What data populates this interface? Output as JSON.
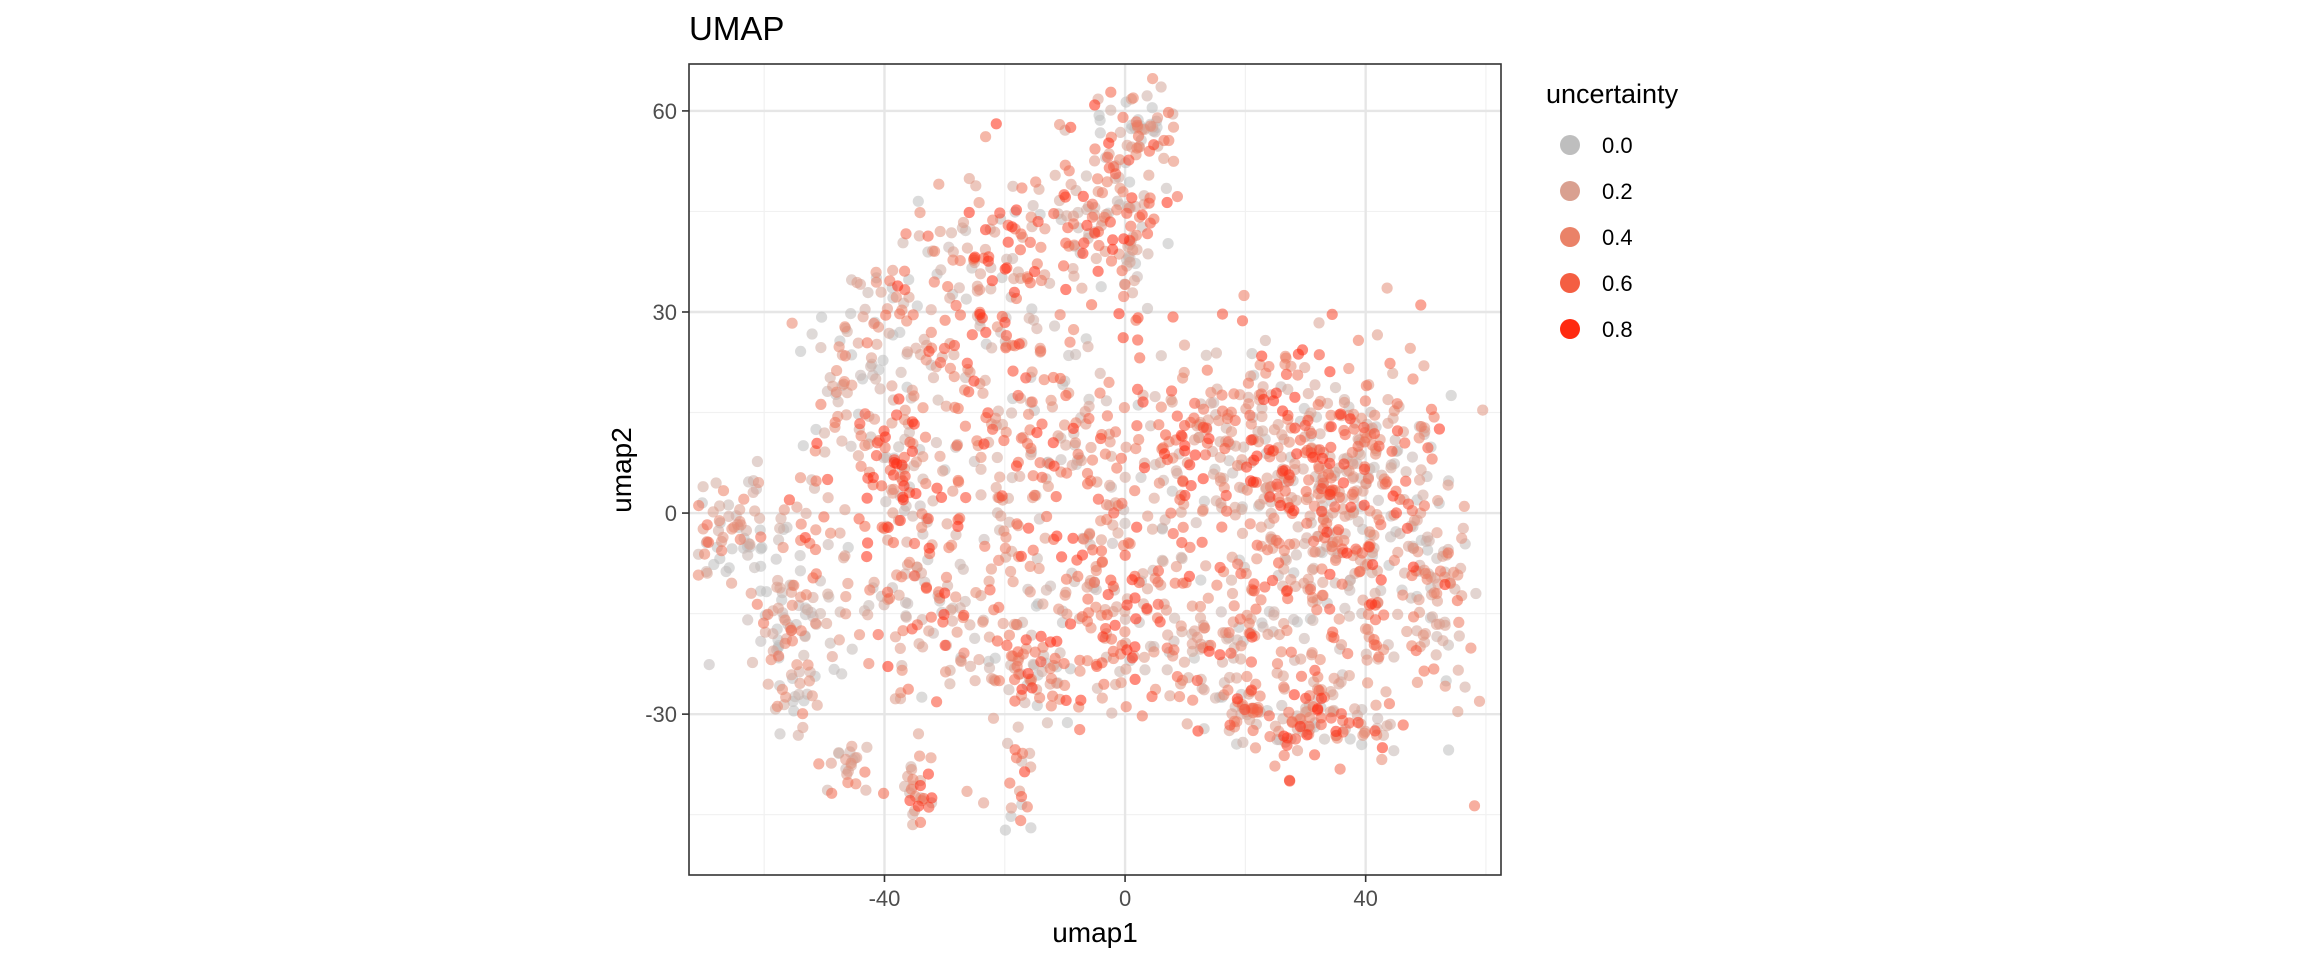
{
  "chart_data": {
    "type": "scatter",
    "title": "UMAP",
    "xlabel": "umap1",
    "ylabel": "umap2",
    "xlim": [
      -72.5,
      62.5
    ],
    "ylim": [
      -54,
      67
    ],
    "x_ticks": [
      -40,
      0,
      40
    ],
    "y_ticks": [
      -30,
      0,
      30,
      60
    ],
    "x_tick_labels": [
      "-40",
      "0",
      "40"
    ],
    "y_tick_labels": [
      "-30",
      "0",
      "30",
      "60"
    ],
    "grid": true,
    "point_alpha": 0.55,
    "legend": {
      "title": "uncertainty",
      "position": "right",
      "entries": [
        {
          "label": "0.0",
          "value": 0.0,
          "color": "#BEBEBE"
        },
        {
          "label": "0.2",
          "value": 0.2,
          "color": "#D9A090"
        },
        {
          "label": "0.4",
          "value": 0.4,
          "color": "#EA8268"
        },
        {
          "label": "0.6",
          "value": 0.6,
          "color": "#F45E42"
        },
        {
          "label": "0.8",
          "value": 0.8,
          "color": "#FF2A10"
        }
      ]
    },
    "clusters": [
      {
        "cx": -65,
        "cy": -3,
        "sx": 3.6,
        "sy": 5.0,
        "n": 70,
        "u": 0.05
      },
      {
        "cx": -54,
        "cy": -17,
        "sx": 4.2,
        "sy": 6.0,
        "n": 85,
        "u": 0.12
      },
      {
        "cx": -55,
        "cy": -27,
        "sx": 2.0,
        "sy": 3.0,
        "n": 20,
        "u": 0.1
      },
      {
        "cx": -46,
        "cy": -38,
        "sx": 2.0,
        "sy": 2.5,
        "n": 22,
        "u": 0.25
      },
      {
        "cx": -34,
        "cy": -42,
        "sx": 2.2,
        "sy": 5.0,
        "n": 25,
        "u": 0.55
      },
      {
        "cx": -18,
        "cy": -39,
        "sx": 1.5,
        "sy": 4.0,
        "n": 18,
        "u": 0.35
      },
      {
        "cx": -46,
        "cy": 20,
        "sx": 4.0,
        "sy": 8.0,
        "n": 60,
        "u": 0.1
      },
      {
        "cx": -37,
        "cy": 7,
        "sx": 5.0,
        "sy": 6.0,
        "n": 90,
        "u": 0.65
      },
      {
        "cx": -30,
        "cy": -12,
        "sx": 8.0,
        "sy": 10.0,
        "n": 150,
        "u": 0.5
      },
      {
        "cx": -38,
        "cy": 30,
        "sx": 4.0,
        "sy": 9.0,
        "n": 45,
        "u": 0.35
      },
      {
        "cx": -24,
        "cy": 32,
        "sx": 6.0,
        "sy": 10.0,
        "n": 110,
        "u": 0.55
      },
      {
        "cx": -12,
        "cy": 43,
        "sx": 7.0,
        "sy": 7.0,
        "n": 90,
        "u": 0.55
      },
      {
        "cx": 0,
        "cy": 45,
        "sx": 4.0,
        "sy": 8.0,
        "n": 90,
        "u": 0.6
      },
      {
        "cx": 3,
        "cy": 58,
        "sx": 3.0,
        "sy": 3.0,
        "n": 45,
        "u": 0.05
      },
      {
        "cx": -12,
        "cy": 10,
        "sx": 9.0,
        "sy": 10.0,
        "n": 170,
        "u": 0.45
      },
      {
        "cx": -2,
        "cy": -15,
        "sx": 8.0,
        "sy": 8.0,
        "n": 170,
        "u": 0.6
      },
      {
        "cx": 10,
        "cy": 10,
        "sx": 6.0,
        "sy": 8.0,
        "n": 110,
        "u": 0.55
      },
      {
        "cx": 14,
        "cy": -20,
        "sx": 6.0,
        "sy": 5.0,
        "n": 70,
        "u": 0.3
      },
      {
        "cx": 24,
        "cy": 12,
        "sx": 6.0,
        "sy": 7.0,
        "n": 120,
        "u": 0.55
      },
      {
        "cx": 34,
        "cy": -5,
        "sx": 10.0,
        "sy": 13.0,
        "n": 420,
        "u": 0.45
      },
      {
        "cx": 40,
        "cy": 10,
        "sx": 6.0,
        "sy": 6.0,
        "n": 90,
        "u": 0.45
      },
      {
        "cx": 32,
        "cy": -31,
        "sx": 6.0,
        "sy": 3.0,
        "n": 90,
        "u": 0.6
      },
      {
        "cx": 52,
        "cy": -12,
        "sx": 3.0,
        "sy": 9.0,
        "n": 70,
        "u": 0.15
      },
      {
        "cx": 20,
        "cy": -30,
        "sx": 4.0,
        "sy": 2.5,
        "n": 30,
        "u": 0.2
      },
      {
        "cx": -17,
        "cy": -24,
        "sx": 5.0,
        "sy": 4.0,
        "n": 60,
        "u": 0.15
      },
      {
        "cx": -53,
        "cy": 1,
        "sx": 3.0,
        "sy": 5.0,
        "n": 30,
        "u": 0.45
      }
    ]
  }
}
